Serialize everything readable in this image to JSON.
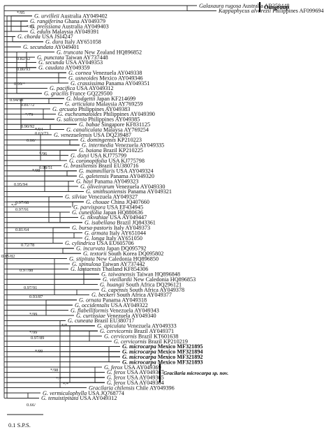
{
  "outgroup_label": "Outgroup",
  "new_species_label": "Gracilaria microcarpa sp. nov.",
  "scale_label": "0.1 S.P.S.",
  "taxa": [
    {
      "sp": "Galaxaura rugosa",
      "loc": "Australia AB258448"
    },
    {
      "sp": "Kappaphycus alvarezii",
      "loc": "Philippines AF099694"
    },
    {
      "sp": "G. urvilleii",
      "loc": "Australia AY049402"
    },
    {
      "sp": "G. rangiferina",
      "loc": "Ghana AY049379"
    },
    {
      "sp": "G. preissiana",
      "loc": "Australia AY049403"
    },
    {
      "sp": "G. edulis",
      "loc": "Malaysia AY049391"
    },
    {
      "sp": "G. chorda",
      "loc": "USA JSI4247"
    },
    {
      "sp": "G. dura",
      "loc": "Italy AY651058"
    },
    {
      "sp": "G. secundata",
      "loc": "AY049401"
    },
    {
      "sp": "G. truncata",
      "loc": "New Zealand HQ896852"
    },
    {
      "sp": "G. punctata",
      "loc": "Taiwan AY737448"
    },
    {
      "sp": "G. secunda",
      "loc": "USA AY049353"
    },
    {
      "sp": "G. caudata",
      "loc": "AY049359"
    },
    {
      "sp": "G. cornea",
      "loc": "Venezuela AY049338"
    },
    {
      "sp": "G. usneoides",
      "loc": "Mexico AY049346"
    },
    {
      "sp": "G. crassissima",
      "loc": "Panama AY049351"
    },
    {
      "sp": "G. pacifica",
      "loc": "USA AY049312"
    },
    {
      "sp": "G. gracilis",
      "loc": "France GQ229500"
    },
    {
      "sp": "G. blodgettii",
      "loc": "Japan KF214699"
    },
    {
      "sp": "G. articulata",
      "loc": "Malaysia AY769259"
    },
    {
      "sp": "G. arcuata",
      "loc": "Philippines AY049383"
    },
    {
      "sp": "G. eucheumatoides",
      "loc": "Philippines AY049390"
    },
    {
      "sp": "G. salicornia",
      "loc": "Philippines AY049385"
    },
    {
      "sp": "G. babae",
      "loc": "Singapore KF831125"
    },
    {
      "sp": "G. canaliculata",
      "loc": "Malaysa AY769254"
    },
    {
      "sp": "G. venezuelensis",
      "loc": "USA DQ239487"
    },
    {
      "sp": "G. domingensis",
      "loc": "KP210223"
    },
    {
      "sp": "G. intermedia",
      "loc": "Venezuela AY049335"
    },
    {
      "sp": "G. baiana",
      "loc": "Brazil KP210225"
    },
    {
      "sp": "G. dotyi",
      "loc": "USA KJ775799"
    },
    {
      "sp": "G. coronopifolia",
      "loc": "USA KJ775798"
    },
    {
      "sp": "G. brasiliensis",
      "loc": "Brazil EU380716"
    },
    {
      "sp": "G. mammillaris",
      "loc": "USA AY049324"
    },
    {
      "sp": "G. galetensis",
      "loc": "Panama AY049320"
    },
    {
      "sp": "G. hayi",
      "loc": "Panama AY049323"
    },
    {
      "sp": "G. oliveirarum",
      "loc": "Venezuela AY049330"
    },
    {
      "sp": "G. smithsoniensis",
      "loc": "Panama AY049321"
    },
    {
      "sp": "G. silviae",
      "loc": "Venezuela AY049327"
    },
    {
      "sp": "G. chouae",
      "loc": "China JQ407660"
    },
    {
      "sp": "G. parvispora",
      "loc": "USA EF434945"
    },
    {
      "sp": "G. cuneifolia",
      "loc": "Japan HQ880636"
    },
    {
      "sp": "G. tikvahiae",
      "loc": "USA AY049447"
    },
    {
      "sp": "G. isabellana",
      "loc": "Brazil JQ843361"
    },
    {
      "sp": "G. bursa-pastoris",
      "loc": "Italy AY049373"
    },
    {
      "sp": "G. armata",
      "loc": "Italy AY651044"
    },
    {
      "sp": "G. longa",
      "loc": "Italy AY651050"
    },
    {
      "sp": "G. cylindrica",
      "loc": "USA EU605706"
    },
    {
      "sp": "G. incurvata",
      "loc": "Japan DQ095792"
    },
    {
      "sp": "G. textorii",
      "loc": "South Korea DQ095802"
    },
    {
      "sp": "G. stipitata",
      "loc": "New Caledonia HQ896850"
    },
    {
      "sp": "G. spinulosa",
      "loc": "Taiwan AY737442"
    },
    {
      "sp": "G. lantaensis",
      "loc": "Thailand KF854306"
    },
    {
      "sp": "G. taiwanensis",
      "loc": "Taiwan HQ896848"
    },
    {
      "sp": "G. vieillardii",
      "loc": "New Caledonia HQ896853"
    },
    {
      "sp": "G. huangii",
      "loc": "South Africa DQ296121"
    },
    {
      "sp": "G. capensis",
      "loc": "South Africa AY049378"
    },
    {
      "sp": "G. beckeri",
      "loc": "South Africa AY049377"
    },
    {
      "sp": "G. ornata",
      "loc": "Panama AY049318"
    },
    {
      "sp": "G. occidentalis",
      "loc": "USA AY049322"
    },
    {
      "sp": "G. flabelliformis",
      "loc": "Venezuela AY049343"
    },
    {
      "sp": "G. curtissiae",
      "loc": "Venezuela AY049340"
    },
    {
      "sp": "G. cuneata",
      "loc": "Brazil EU380717"
    },
    {
      "sp": "G. apiculata",
      "loc": "Venezuela AY049333"
    },
    {
      "sp": "G. cervicornis",
      "loc": "Brazil AY049371"
    },
    {
      "sp": "G. cervicornis",
      "loc": "Brazil KT601638"
    },
    {
      "sp": "G. cervicornis",
      "loc": "Brazil KP210219"
    },
    {
      "sp": "G. microcarpa",
      "loc": "Mexico MF321895",
      "bold": true
    },
    {
      "sp": "G. microcarpa",
      "loc": "Mexico MF321894",
      "bold": true
    },
    {
      "sp": "G. microcarpa",
      "loc": "Mexico MF321892",
      "bold": true
    },
    {
      "sp": "G. microcarpa",
      "loc": "Mexico MF321893",
      "bold": true
    },
    {
      "sp": "G. ferox",
      "loc": "USA AY049369"
    },
    {
      "sp": "G. ferox",
      "loc": "USA AY049367"
    },
    {
      "sp": "G. ferox",
      "loc": "USA AY049365"
    },
    {
      "sp": "G. ferox",
      "loc": "USA AY049364"
    },
    {
      "sp": "Gracilaria chilensis",
      "loc": "Chile AY049396"
    },
    {
      "sp": "G. vermiculophylla",
      "loc": "USA JQ768774"
    },
    {
      "sp": "G. tenuistipitata",
      "loc": "USA AY049312"
    }
  ],
  "supports": [
    {
      "t": "*/95"
    },
    {
      "t": "*/95"
    },
    {
      "t": "0.82/52"
    },
    {
      "t": "0.80/93"
    },
    {
      "t": "0.99/*"
    },
    {
      "t": "0.94/98"
    },
    {
      "t": "0.81/72"
    },
    {
      "t": "*/79"
    },
    {
      "t": "0.90/92"
    },
    {
      "t": "0.63/73"
    },
    {
      "t": "*/94"
    },
    {
      "t": "0.66/"
    },
    {
      "t": "0.98/51"
    },
    {
      "t": "*/96"
    },
    {
      "t": "0.95/94"
    },
    {
      "t": "*/98"
    },
    {
      "t": "0.97/68"
    },
    {
      "t": "0.97/91"
    },
    {
      "t": "0.81/64"
    },
    {
      "t": "0.72/78"
    },
    {
      "t": "0.97/88"
    },
    {
      "t": "0.85/82"
    },
    {
      "t": "0.97/91"
    },
    {
      "t": "0.93/87"
    },
    {
      "t": "*/99"
    },
    {
      "t": "*/99"
    },
    {
      "t": "0.97/89"
    },
    {
      "t": "*/99"
    },
    {
      "t": "*/98"
    },
    {
      "t": "*/*"
    },
    {
      "t": "*/*"
    },
    {
      "t": "0.66/"
    },
    {
      "t": "*/*"
    },
    {
      "t": "*/*"
    }
  ]
}
